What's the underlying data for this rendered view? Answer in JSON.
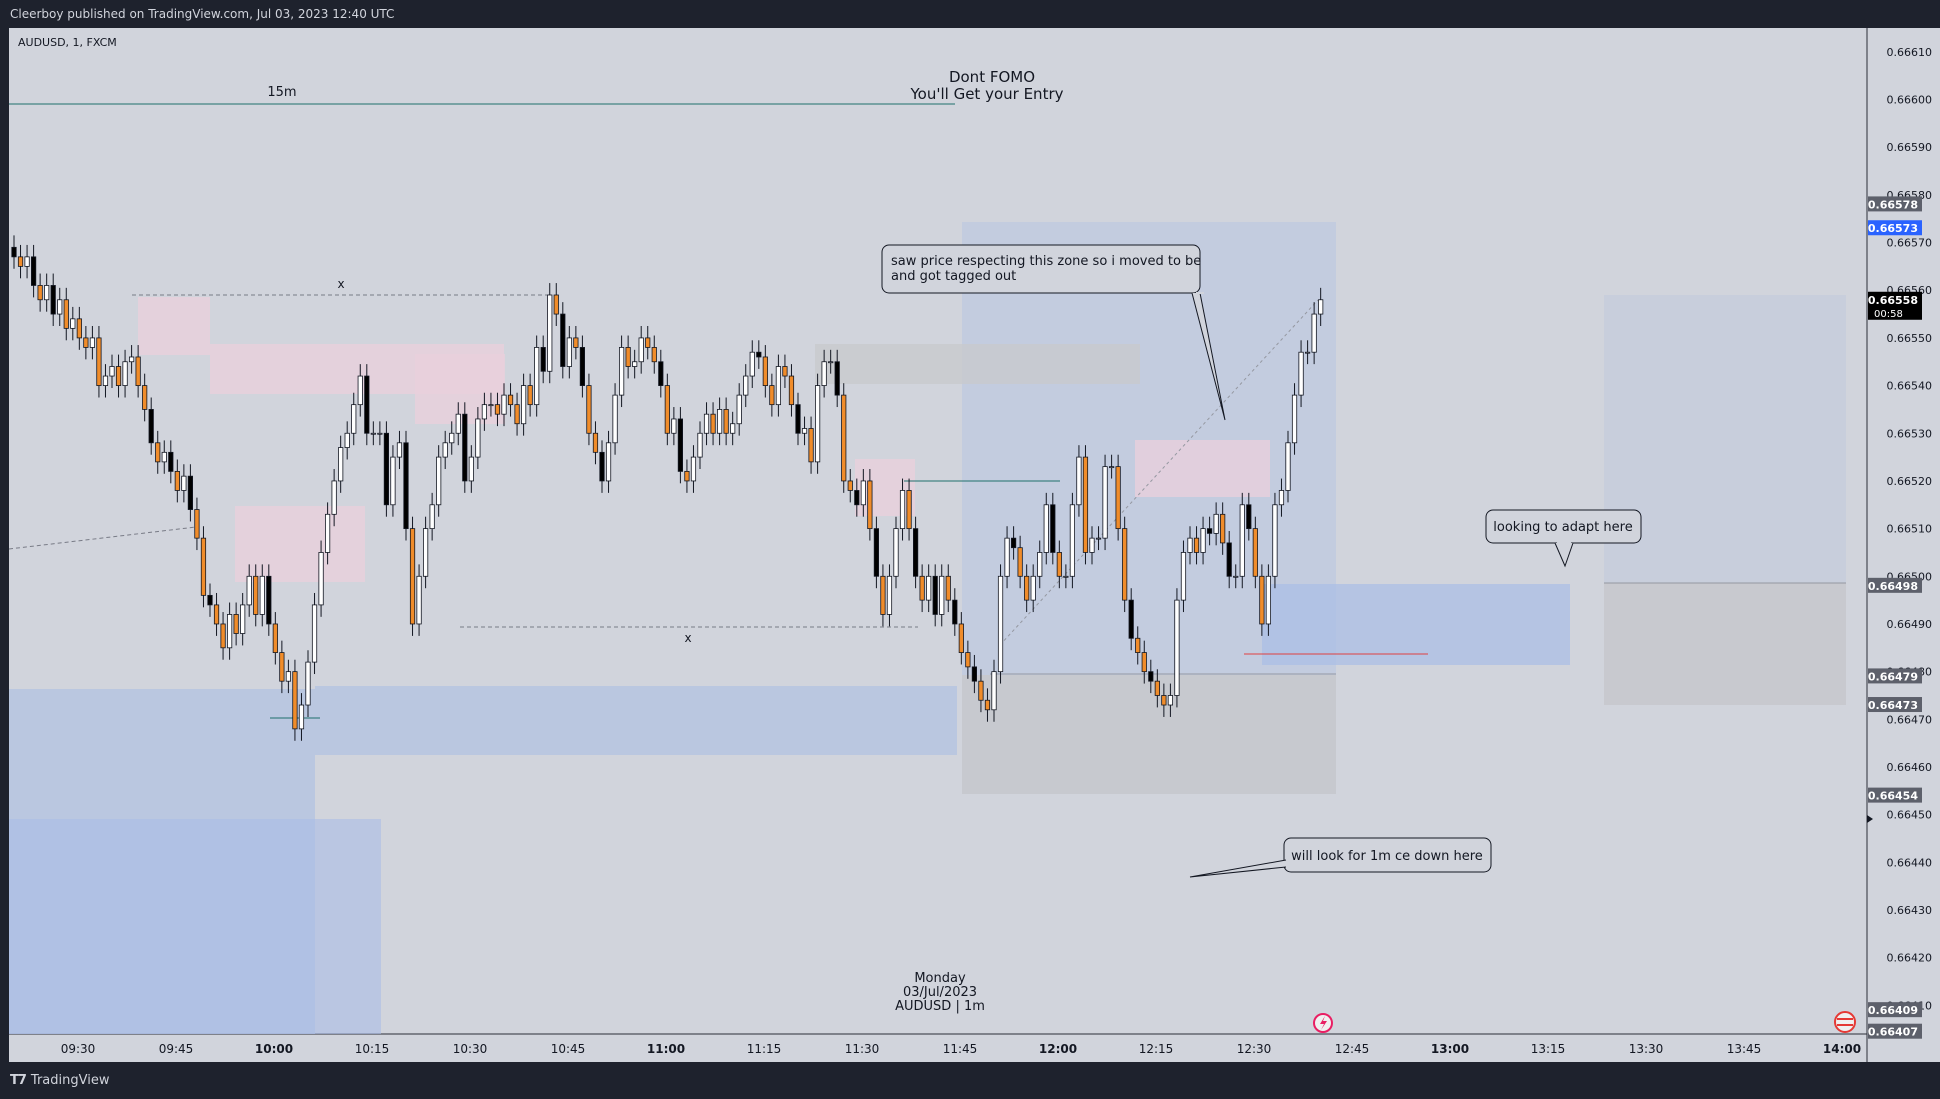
{
  "header": {
    "publisher": "Cleerboy published on TradingView.com, Jul 03, 2023 12:40 UTC"
  },
  "footer": {
    "brand": "TradingView"
  },
  "symbol_line": "AUDUSD, 1, FXCM",
  "annotations": {
    "headline1": "Dont FOMO",
    "headline2": "You'll Get your Entry",
    "tf_label": "15m",
    "x_mark": "x",
    "callout_zone_1": "saw price respecting this zone so i moved to be",
    "callout_zone_2": "and got tagged out",
    "callout_adapt": "looking to adapt here",
    "callout_1m": "will look for 1m ce down here",
    "session1": "Monday",
    "session2": "03/Jul/2023",
    "session3": "AUDUSD | 1m"
  },
  "colors": {
    "background": "#d1d4dc",
    "up_candle": "#ffffff",
    "down_candle": "#000000",
    "down_candle_alt": "#f08c2a",
    "zone_blue": "#b2c3e2",
    "zone_pink": "#e8cfdc",
    "zone_grey": "#c8c9cd",
    "price_label_dark": "#5d606b",
    "price_label_blue": "#2962ff",
    "price_label_black": "#000000"
  },
  "chart_data": {
    "type": "candlestick",
    "symbol": "AUDUSD",
    "interval": "1",
    "source": "FXCM",
    "x_ticks": [
      "09:30",
      "09:45",
      "10:00",
      "10:15",
      "10:30",
      "10:45",
      "11:00",
      "11:15",
      "11:30",
      "11:45",
      "12:00",
      "12:15",
      "12:30",
      "12:45",
      "13:00",
      "13:15",
      "13:30",
      "13:45",
      "14:00"
    ],
    "bold_x_ticks": [
      "10:00",
      "11:00",
      "12:00",
      "13:00",
      "14:00"
    ],
    "y_ticks": [
      "0.66610",
      "0.66600",
      "0.66590",
      "0.66580",
      "0.66570",
      "0.66560",
      "0.66550",
      "0.66540",
      "0.66530",
      "0.66520",
      "0.66510",
      "0.66500",
      "0.66490",
      "0.66480",
      "0.66470",
      "0.66460",
      "0.66450",
      "0.66440",
      "0.66430",
      "0.66420",
      "0.66410"
    ],
    "y_range": [
      0.66404,
      0.66615
    ],
    "price_labels": [
      {
        "value": "0.66578",
        "style": "dark"
      },
      {
        "value": "0.66573",
        "style": "blue"
      },
      {
        "value": "0.66558",
        "style": "black",
        "sub": "00:58"
      },
      {
        "value": "0.66498",
        "style": "dark"
      },
      {
        "value": "0.66479",
        "style": "dark"
      },
      {
        "value": "0.66473",
        "style": "dark"
      },
      {
        "value": "0.66454",
        "style": "dark"
      },
      {
        "value": "0.66409",
        "style": "dark"
      },
      {
        "value": "0.66407",
        "style": "dark"
      }
    ],
    "candles_close": [
      0.66567,
      0.66565,
      0.66567,
      0.66561,
      0.66558,
      0.66561,
      0.66555,
      0.66558,
      0.66552,
      0.66554,
      0.6655,
      0.66548,
      0.6655,
      0.6654,
      0.66542,
      0.66544,
      0.6654,
      0.66545,
      0.66546,
      0.6654,
      0.66535,
      0.66528,
      0.66524,
      0.66526,
      0.66522,
      0.66518,
      0.66521,
      0.66514,
      0.66508,
      0.66496,
      0.66494,
      0.6649,
      0.66485,
      0.66492,
      0.66488,
      0.66494,
      0.665,
      0.66492,
      0.665,
      0.6649,
      0.66484,
      0.66478,
      0.6648,
      0.66468,
      0.66473,
      0.66482,
      0.66494,
      0.66505,
      0.66513,
      0.6652,
      0.66527,
      0.6653,
      0.66536,
      0.66542,
      0.6653,
      0.6653,
      0.6653,
      0.66515,
      0.66525,
      0.66528,
      0.6651,
      0.6649,
      0.665,
      0.6651,
      0.66515,
      0.66525,
      0.66528,
      0.6653,
      0.66534,
      0.6652,
      0.66525,
      0.66533,
      0.66536,
      0.66536,
      0.66534,
      0.66538,
      0.66536,
      0.66532,
      0.6654,
      0.66536,
      0.66548,
      0.66543,
      0.66559,
      0.66555,
      0.66544,
      0.6655,
      0.66548,
      0.6654,
      0.6653,
      0.66526,
      0.6652,
      0.66528,
      0.66538,
      0.66548,
      0.66544,
      0.66545,
      0.6655,
      0.66548,
      0.66545,
      0.6654,
      0.6653,
      0.66533,
      0.66522,
      0.6652,
      0.66525,
      0.6653,
      0.66534,
      0.6653,
      0.66535,
      0.6653,
      0.66532,
      0.66538,
      0.66542,
      0.66547,
      0.66546,
      0.6654,
      0.66536,
      0.66544,
      0.66542,
      0.66536,
      0.6653,
      0.66531,
      0.66524,
      0.6654,
      0.66545,
      0.66545,
      0.66538,
      0.6652,
      0.66518,
      0.66515,
      0.6652,
      0.6651,
      0.665,
      0.66492,
      0.665,
      0.6651,
      0.66518,
      0.6651,
      0.665,
      0.66495,
      0.665,
      0.66492,
      0.665,
      0.66495,
      0.6649,
      0.66484,
      0.66481,
      0.66478,
      0.66474,
      0.66472,
      0.6648,
      0.665,
      0.66508,
      0.66506,
      0.665,
      0.66495,
      0.665,
      0.66505,
      0.66515,
      0.66505,
      0.665,
      0.665,
      0.66515,
      0.66525,
      0.66505,
      0.66508,
      0.66508,
      0.66523,
      0.66523,
      0.6651,
      0.66495,
      0.66487,
      0.66484,
      0.6648,
      0.66478,
      0.66475,
      0.66473,
      0.66475,
      0.66495,
      0.66505,
      0.66508,
      0.66505,
      0.6651,
      0.66509,
      0.66513,
      0.66507,
      0.665,
      0.665,
      0.66515,
      0.6651,
      0.665,
      0.6649,
      0.665,
      0.66515,
      0.66518,
      0.66528,
      0.66538,
      0.66547,
      0.66547,
      0.66555,
      0.66558
    ]
  }
}
